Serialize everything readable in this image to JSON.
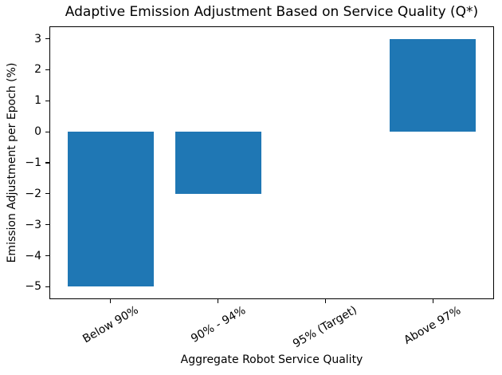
{
  "figure": {
    "background": "#ffffff"
  },
  "chart_data": {
    "type": "bar",
    "title": "Adaptive Emission Adjustment Based on Service Quality (Q*)",
    "xlabel": "Aggregate Robot Service Quality",
    "ylabel": "Emission Adjustment per Epoch (%)",
    "categories": [
      "Below 90%",
      "90% - 94%",
      "95% (Target)",
      "Above 97%"
    ],
    "values": [
      -5,
      -2,
      0,
      3
    ],
    "bar_color": "#1f77b4",
    "text_color": "#000000",
    "spine_color": "#000000",
    "ylim": [
      -5.4,
      3.4
    ],
    "yticks": [
      3,
      2,
      1,
      0,
      -1,
      -2,
      -3,
      -4,
      -5
    ],
    "xlim": [
      -0.57,
      3.57
    ],
    "bar_width_fraction": 0.8,
    "x_tick_rotation_deg": 30,
    "grid": false,
    "legend": null
  }
}
